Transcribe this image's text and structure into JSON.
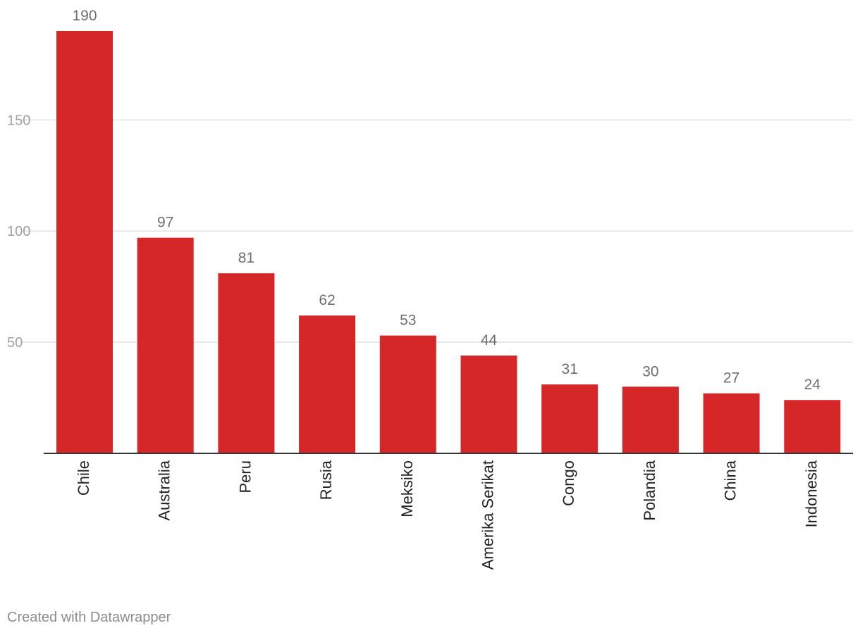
{
  "chart_data": {
    "type": "bar",
    "title": "",
    "xlabel": "",
    "ylabel": "",
    "categories": [
      "Chile",
      "Australia",
      "Peru",
      "Rusia",
      "Meksiko",
      "Amerika Serikat",
      "Congo",
      "Polandia",
      "China",
      "Indonesia"
    ],
    "values": [
      190,
      97,
      81,
      62,
      53,
      44,
      31,
      30,
      27,
      24
    ],
    "yticks": [
      50,
      100,
      150
    ],
    "ylim": [
      0,
      190
    ],
    "grid": true,
    "bar_color": "#d62728",
    "grid_color": "#e2e2e2",
    "axis_color": "#333333"
  },
  "footer": {
    "credit": "Created with Datawrapper"
  }
}
